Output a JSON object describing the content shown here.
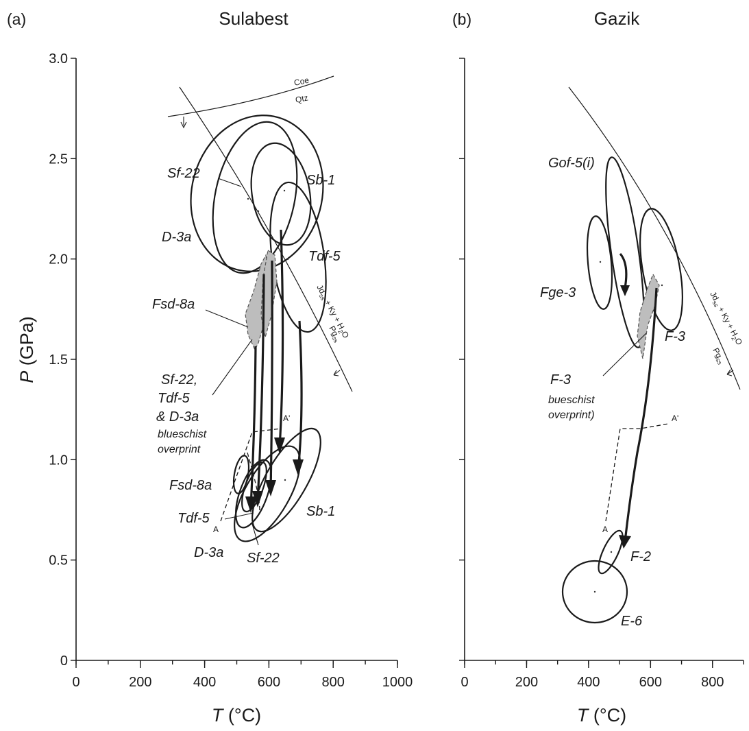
{
  "chart_data": [
    {
      "type": "scatter",
      "panel_label": "(a)",
      "title": "Sulabest",
      "xlabel_var": "T",
      "xlabel_unit": " (°C)",
      "ylabel_var": "P",
      "ylabel_unit": " (GPa)",
      "xlim": [
        0,
        1000
      ],
      "ylim": [
        0,
        3.0
      ],
      "xticks": [
        "0",
        "200",
        "400",
        "600",
        "800",
        "1000"
      ],
      "yticks": [
        "0",
        "0.5",
        "1.0",
        "1.5",
        "2.0",
        "2.5",
        "3.0"
      ],
      "ellipse_labels": [
        "Sf-22",
        "Sb-1",
        "D-3a",
        "Tdf-5",
        "Fsd-8a",
        "Fsd-8a",
        "Tdf-5",
        "D-3a",
        "Sf-22",
        "Sb-1"
      ],
      "overprint_note": [
        "Sf-22,",
        "Tdf-5",
        "& D-3a",
        "blueschist",
        "overprint"
      ],
      "reaction_labels": {
        "coe": "Coe",
        "qtz": "Qtz",
        "jd": "Jd",
        "jd_sub": "ss",
        "ky": " + Ky + H",
        "h2o_sub": "2",
        "o": "O",
        "pg": "Pg",
        "pg_sub": "ss"
      },
      "section_labels": {
        "a": "A",
        "a_prime": "A'"
      }
    },
    {
      "type": "scatter",
      "panel_label": "(b)",
      "title": "Gazik",
      "xlabel_var": "T",
      "xlabel_unit": " (°C)",
      "xlim": [
        0,
        900
      ],
      "ylim": [
        0,
        3.0
      ],
      "xticks": [
        "0",
        "200",
        "400",
        "600",
        "800"
      ],
      "ellipse_labels": [
        "Gof-5(i)",
        "Fge-3",
        "F-3",
        "F-2",
        "E-6"
      ],
      "overprint_note": [
        "F-3",
        "bueschist",
        "overprint)"
      ],
      "reaction_labels": {
        "jd": "Jd",
        "jd_sub": "ss",
        "ky": " + Ky + H",
        "h2o_sub": "2",
        "o": "O",
        "pg": "Pg",
        "pg_sub": "ss"
      },
      "section_labels": {
        "a": "A",
        "a_prime": "A'"
      }
    }
  ]
}
